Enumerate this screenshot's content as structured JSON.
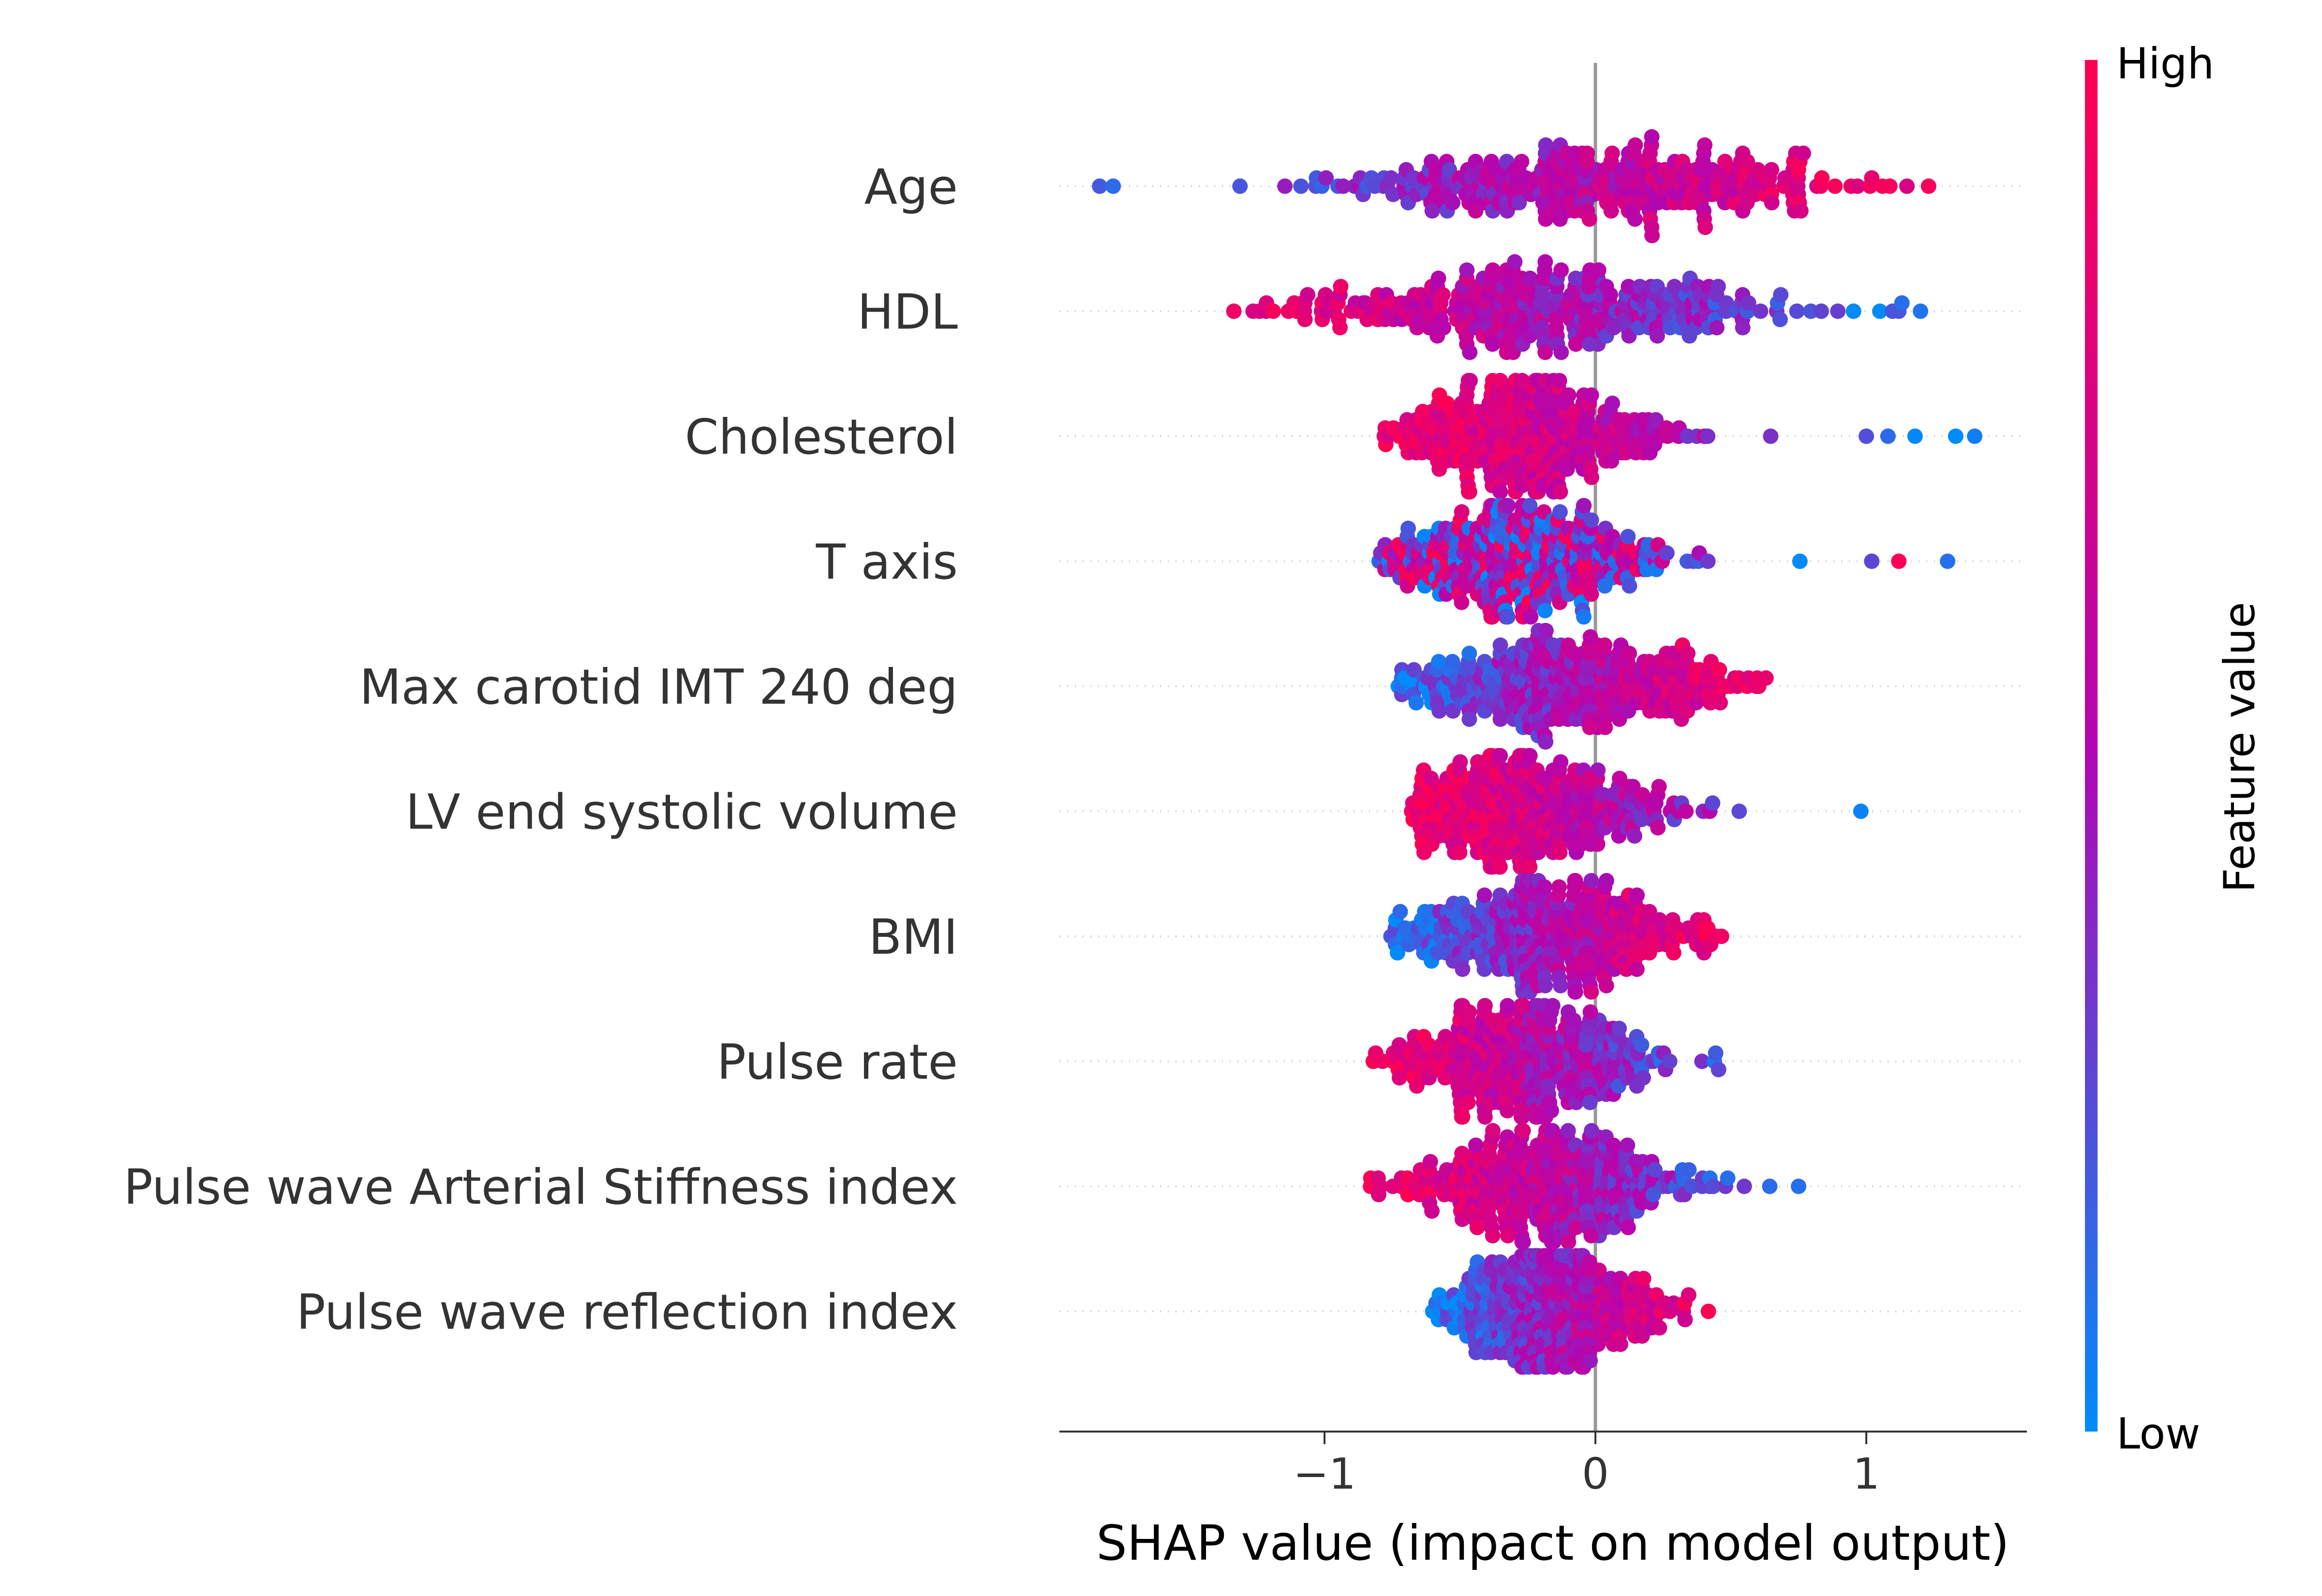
{
  "chart_data": {
    "type": "scatter",
    "xlabel": "SHAP value (impact on model output)",
    "ylabel": "",
    "xlim": [
      -2.0,
      1.6
    ],
    "x_ticks": [
      {
        "value": -1,
        "label": "−1"
      },
      {
        "value": 0,
        "label": "0"
      },
      {
        "value": 1,
        "label": "1"
      }
    ],
    "zero_line": 0,
    "grid": false,
    "colorbar": {
      "label": "Feature value",
      "high_label": "High",
      "low_label": "Low",
      "high_color": "#ff0052",
      "mid_color": "#b306b0",
      "low_color": "#008bfb"
    },
    "features": [
      {
        "name": "Age",
        "min": -1.85,
        "max": 1.23,
        "center": 0.0,
        "spread": 0.5,
        "trend": 1,
        "outliers": [
          -1.83,
          -1.78,
          1.02,
          1.15,
          1.23
        ]
      },
      {
        "name": "HDL",
        "min": -1.5,
        "max": 1.2,
        "center": -0.25,
        "spread": 0.45,
        "trend": -1,
        "outliers": [
          1.05,
          1.12,
          1.2
        ]
      },
      {
        "name": "Cholesterol",
        "min": -0.78,
        "max": 1.4,
        "center": -0.3,
        "spread": 0.3,
        "trend": -1,
        "outliers": [
          1.0,
          1.08,
          1.18,
          1.33,
          1.4
        ]
      },
      {
        "name": "T axis",
        "min": -0.8,
        "max": 1.3,
        "center": -0.3,
        "spread": 0.3,
        "trend": 0,
        "outliers": [
          1.02,
          1.12,
          1.3
        ]
      },
      {
        "name": "Max carotid IMT 240 deg",
        "min": -0.78,
        "max": 0.65,
        "center": -0.1,
        "spread": 0.35,
        "trend": 1,
        "outliers": []
      },
      {
        "name": "LV end systolic volume",
        "min": -0.68,
        "max": 0.98,
        "center": -0.3,
        "spread": 0.28,
        "trend": -1,
        "outliers": [
          0.98
        ]
      },
      {
        "name": "BMI",
        "min": -0.78,
        "max": 0.5,
        "center": -0.15,
        "spread": 0.3,
        "trend": 1,
        "outliers": []
      },
      {
        "name": "Pulse rate",
        "min": -0.82,
        "max": 0.55,
        "center": -0.25,
        "spread": 0.28,
        "trend": -1,
        "outliers": [
          -0.82
        ]
      },
      {
        "name": "Pulse wave Arterial Stiffness index",
        "min": -0.83,
        "max": 0.75,
        "center": -0.2,
        "spread": 0.3,
        "trend": -1,
        "outliers": [
          -0.83,
          0.75
        ]
      },
      {
        "name": "Pulse wave reflection index",
        "min": -0.62,
        "max": 0.45,
        "center": -0.15,
        "spread": 0.22,
        "trend": 1,
        "outliers": []
      }
    ]
  }
}
